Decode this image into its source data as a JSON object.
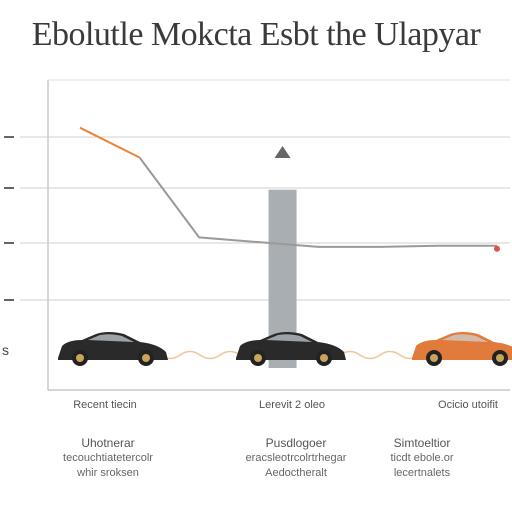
{
  "title": "Ebolutle Mokcta Esbt the Ulapyar",
  "chart_data": {
    "type": "line",
    "title": "Ebolutle Mokcta Esbt the Ulapyar",
    "ytick_labels": [
      "",
      "",
      "",
      "",
      "s"
    ],
    "x": [
      0,
      1,
      2,
      3,
      4,
      5,
      6,
      7
    ],
    "series": [
      {
        "values": [
          220,
          195,
          128,
          124,
          120,
          120,
          121,
          121
        ]
      }
    ],
    "xlim": [
      0,
      7
    ],
    "ylim": [
      0,
      260
    ],
    "grid": true,
    "vertical_bar": {
      "x": 3.4,
      "value": 168
    },
    "categories": [
      "Recent tiecin",
      "Lerevit 2 oleo",
      "Ocicio utoifit"
    ],
    "car_colors": [
      "#2a2a2a",
      "#2a2a2a",
      "#e07b3c"
    ],
    "line_color": "#9a9a9a",
    "accent_color": "#e8843a",
    "bar_color": "#a9aeb3"
  },
  "captions": [
    {
      "head": "Uhotnerar",
      "lines": [
        "tecouchtiatetercolr",
        "whir sroksen"
      ]
    },
    {
      "head": "Pusdlogoer",
      "lines": [
        "eracsleotrcolrtrhegar",
        "Aedoctheralt"
      ]
    },
    {
      "head": "Simtoeltior",
      "lines": [
        "ticdt ebole.or",
        "lecertnalets"
      ]
    }
  ]
}
